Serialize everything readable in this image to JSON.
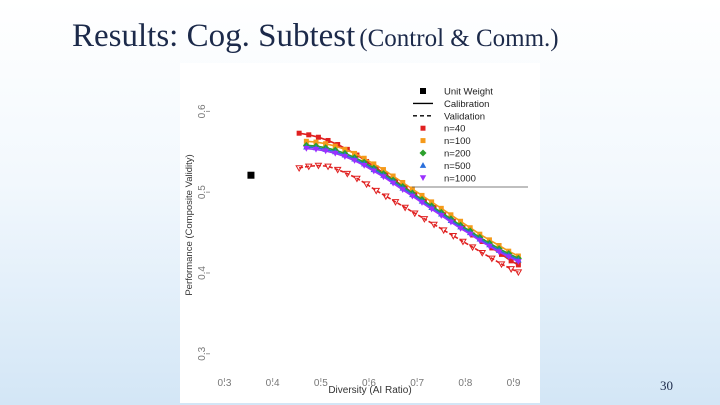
{
  "slide": {
    "title_main": "Results: Cog. Subtest",
    "title_sub": "(Control & Comm.)",
    "page_number": "30"
  },
  "chart_data": {
    "type": "line",
    "title": "",
    "xlabel": "Diversity (AI Ratio)",
    "ylabel": "Performance (Composite Validity)",
    "xlim": [
      0.27,
      0.93
    ],
    "ylim": [
      0.27,
      0.65
    ],
    "x_ticks": [
      "0.3",
      "0.4",
      "0.5",
      "0.6",
      "0.7",
      "0.8",
      "0.9"
    ],
    "y_ticks": [
      "0.3",
      "0.4",
      "0.5",
      "0.6"
    ],
    "unit_weight_point": {
      "name": "Unit Weight",
      "x": 0.355,
      "y": 0.521,
      "color": "#000000"
    },
    "legend": [
      {
        "label": "Unit Weight",
        "marker": "square",
        "color": "#000000",
        "line": "none"
      },
      {
        "label": "Calibration",
        "marker": "none",
        "color": "#000000",
        "line": "solid"
      },
      {
        "label": "Validation",
        "marker": "none",
        "color": "#000000",
        "line": "dashed"
      },
      {
        "label": "n=40",
        "marker": "square",
        "color": "#e02020",
        "line": "none"
      },
      {
        "label": "n=100",
        "marker": "square",
        "color": "#f59a1a",
        "line": "none"
      },
      {
        "label": "n=200",
        "marker": "diamond",
        "color": "#2ca02c",
        "line": "none"
      },
      {
        "label": "n=500",
        "marker": "triangle-up",
        "color": "#2a6fdb",
        "line": "none"
      },
      {
        "label": "n=1000",
        "marker": "triangle-down",
        "color": "#9b30ff",
        "line": "none"
      }
    ],
    "series": [
      {
        "name": "n=40 Validation",
        "color": "#e02020",
        "style": "dashed",
        "marker": "triangle-down-open",
        "x": [
          0.455,
          0.475,
          0.495,
          0.515,
          0.535,
          0.555,
          0.575,
          0.595,
          0.615,
          0.635,
          0.655,
          0.675,
          0.695,
          0.715,
          0.735,
          0.755,
          0.775,
          0.795,
          0.815,
          0.835,
          0.855,
          0.875,
          0.895,
          0.91
        ],
        "values": [
          0.53,
          0.532,
          0.533,
          0.532,
          0.528,
          0.523,
          0.517,
          0.51,
          0.502,
          0.495,
          0.488,
          0.481,
          0.474,
          0.467,
          0.46,
          0.453,
          0.446,
          0.439,
          0.432,
          0.425,
          0.418,
          0.411,
          0.405,
          0.401
        ]
      },
      {
        "name": "n=40 Calibration",
        "color": "#e02020",
        "style": "solid",
        "marker": "square",
        "x": [
          0.455,
          0.475,
          0.495,
          0.515,
          0.535,
          0.555,
          0.575,
          0.595,
          0.615,
          0.635,
          0.655,
          0.675,
          0.695,
          0.715,
          0.735,
          0.755,
          0.775,
          0.795,
          0.815,
          0.835,
          0.855,
          0.875,
          0.895,
          0.91
        ],
        "values": [
          0.573,
          0.571,
          0.568,
          0.564,
          0.559,
          0.553,
          0.546,
          0.538,
          0.53,
          0.522,
          0.514,
          0.506,
          0.497,
          0.489,
          0.481,
          0.472,
          0.464,
          0.456,
          0.447,
          0.439,
          0.431,
          0.423,
          0.415,
          0.41
        ]
      },
      {
        "name": "n=100",
        "color": "#f59a1a",
        "style": "solid",
        "marker": "square",
        "x": [
          0.47,
          0.49,
          0.51,
          0.53,
          0.55,
          0.57,
          0.59,
          0.61,
          0.63,
          0.65,
          0.67,
          0.69,
          0.71,
          0.73,
          0.75,
          0.77,
          0.79,
          0.81,
          0.83,
          0.85,
          0.87,
          0.89,
          0.91
        ],
        "values": [
          0.563,
          0.562,
          0.56,
          0.557,
          0.553,
          0.548,
          0.542,
          0.535,
          0.528,
          0.52,
          0.512,
          0.504,
          0.496,
          0.488,
          0.48,
          0.472,
          0.464,
          0.456,
          0.448,
          0.441,
          0.434,
          0.427,
          0.421
        ]
      },
      {
        "name": "n=200",
        "color": "#2ca02c",
        "style": "solid",
        "marker": "diamond",
        "x": [
          0.47,
          0.49,
          0.51,
          0.53,
          0.55,
          0.57,
          0.59,
          0.61,
          0.63,
          0.65,
          0.67,
          0.69,
          0.71,
          0.73,
          0.75,
          0.77,
          0.79,
          0.81,
          0.83,
          0.85,
          0.87,
          0.89,
          0.91
        ],
        "values": [
          0.558,
          0.557,
          0.555,
          0.552,
          0.548,
          0.543,
          0.537,
          0.53,
          0.523,
          0.515,
          0.507,
          0.499,
          0.491,
          0.483,
          0.475,
          0.467,
          0.459,
          0.452,
          0.444,
          0.437,
          0.43,
          0.424,
          0.418
        ]
      },
      {
        "name": "n=500",
        "color": "#2a6fdb",
        "style": "solid",
        "marker": "triangle-up",
        "x": [
          0.47,
          0.49,
          0.51,
          0.53,
          0.55,
          0.57,
          0.59,
          0.61,
          0.63,
          0.65,
          0.67,
          0.69,
          0.71,
          0.73,
          0.75,
          0.77,
          0.79,
          0.81,
          0.83,
          0.85,
          0.87,
          0.89,
          0.91
        ],
        "values": [
          0.556,
          0.555,
          0.553,
          0.55,
          0.546,
          0.541,
          0.535,
          0.528,
          0.521,
          0.513,
          0.505,
          0.497,
          0.489,
          0.481,
          0.473,
          0.465,
          0.457,
          0.45,
          0.442,
          0.435,
          0.428,
          0.422,
          0.416
        ]
      },
      {
        "name": "n=1000",
        "color": "#9b30ff",
        "style": "solid",
        "marker": "triangle-down",
        "x": [
          0.47,
          0.49,
          0.51,
          0.53,
          0.55,
          0.57,
          0.59,
          0.61,
          0.63,
          0.65,
          0.67,
          0.69,
          0.71,
          0.73,
          0.75,
          0.77,
          0.79,
          0.81,
          0.83,
          0.85,
          0.87,
          0.89,
          0.91
        ],
        "values": [
          0.554,
          0.553,
          0.551,
          0.548,
          0.544,
          0.539,
          0.533,
          0.526,
          0.519,
          0.511,
          0.503,
          0.495,
          0.487,
          0.479,
          0.471,
          0.463,
          0.455,
          0.448,
          0.44,
          0.433,
          0.426,
          0.42,
          0.414
        ]
      }
    ]
  }
}
